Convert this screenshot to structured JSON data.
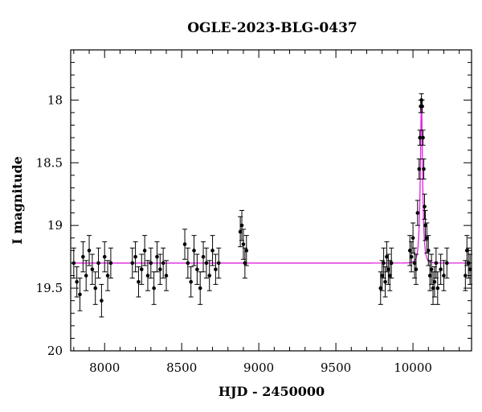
{
  "chart_data": {
    "type": "scatter",
    "title": "OGLE-2023-BLG-0437",
    "xlabel": "HJD - 2450000",
    "ylabel": "I magnitude",
    "xlim": [
      7780,
      10380
    ],
    "ylim": [
      20,
      17.6
    ],
    "y_inverted": true,
    "grid": false,
    "legend": "none",
    "xticks": [
      8000,
      8500,
      9000,
      9500,
      10000
    ],
    "yticks": [
      18,
      18.5,
      19,
      19.5,
      20
    ],
    "xticks_minor_step": 100,
    "yticks_minor_step": 0.1,
    "colors": {
      "points": "#000000",
      "errorbars": "#000000",
      "model": "#e020e0",
      "frame": "#000000"
    },
    "series": [
      {
        "kind": "points_with_errorbars",
        "x": [
          7800,
          7820,
          7840,
          7860,
          7880,
          7900,
          7920,
          7940,
          7960,
          7980,
          8000,
          8020,
          8040,
          8180,
          8200,
          8220,
          8240,
          8260,
          8280,
          8300,
          8320,
          8340,
          8360,
          8380,
          8400,
          8520,
          8540,
          8560,
          8580,
          8600,
          8620,
          8640,
          8660,
          8680,
          8700,
          8720,
          8740,
          8880,
          8890,
          8900,
          8910,
          8920,
          9790,
          9800,
          9810,
          9820,
          9830,
          9840,
          9850,
          9860,
          9980,
          9990,
          10000,
          10010,
          10020,
          10030,
          10040,
          10045,
          10050,
          10055,
          10060,
          10065,
          10070,
          10075,
          10080,
          10090,
          10100,
          10110,
          10120,
          10130,
          10140,
          10150,
          10160,
          10180,
          10200,
          10220,
          10340,
          10350,
          10360,
          10370
        ],
        "y": [
          19.3,
          19.45,
          19.55,
          19.25,
          19.4,
          19.2,
          19.35,
          19.5,
          19.3,
          19.6,
          19.25,
          19.4,
          19.3,
          19.3,
          19.25,
          19.45,
          19.35,
          19.2,
          19.4,
          19.3,
          19.5,
          19.25,
          19.35,
          19.3,
          19.4,
          19.15,
          19.3,
          19.45,
          19.2,
          19.35,
          19.5,
          19.25,
          19.3,
          19.4,
          19.2,
          19.35,
          19.3,
          19.05,
          19.0,
          19.15,
          19.3,
          19.2,
          19.5,
          19.4,
          19.3,
          19.45,
          19.25,
          19.35,
          19.4,
          19.3,
          19.2,
          19.25,
          19.1,
          19.3,
          19.35,
          18.9,
          18.55,
          18.3,
          18.05,
          18.0,
          18.05,
          18.3,
          18.55,
          18.85,
          19.0,
          19.1,
          19.2,
          19.4,
          19.35,
          19.5,
          19.45,
          19.3,
          19.5,
          19.35,
          19.4,
          19.3,
          19.4,
          19.2,
          19.3,
          19.35
        ],
        "yerr": [
          0.12,
          0.12,
          0.13,
          0.12,
          0.12,
          0.12,
          0.12,
          0.13,
          0.12,
          0.13,
          0.12,
          0.12,
          0.12,
          0.12,
          0.12,
          0.12,
          0.12,
          0.12,
          0.12,
          0.12,
          0.13,
          0.12,
          0.12,
          0.12,
          0.12,
          0.12,
          0.12,
          0.12,
          0.12,
          0.12,
          0.13,
          0.12,
          0.12,
          0.12,
          0.12,
          0.12,
          0.12,
          0.12,
          0.12,
          0.12,
          0.12,
          0.12,
          0.13,
          0.12,
          0.12,
          0.12,
          0.12,
          0.12,
          0.12,
          0.12,
          0.12,
          0.12,
          0.12,
          0.12,
          0.12,
          0.1,
          0.08,
          0.06,
          0.05,
          0.05,
          0.05,
          0.06,
          0.08,
          0.1,
          0.12,
          0.12,
          0.12,
          0.12,
          0.12,
          0.13,
          0.12,
          0.12,
          0.13,
          0.12,
          0.12,
          0.12,
          0.12,
          0.12,
          0.12,
          0.12
        ]
      },
      {
        "kind": "model_curve",
        "baseline": 19.3,
        "peak_x": 10055,
        "peak_y": 18.0,
        "tE": 15
      }
    ]
  }
}
